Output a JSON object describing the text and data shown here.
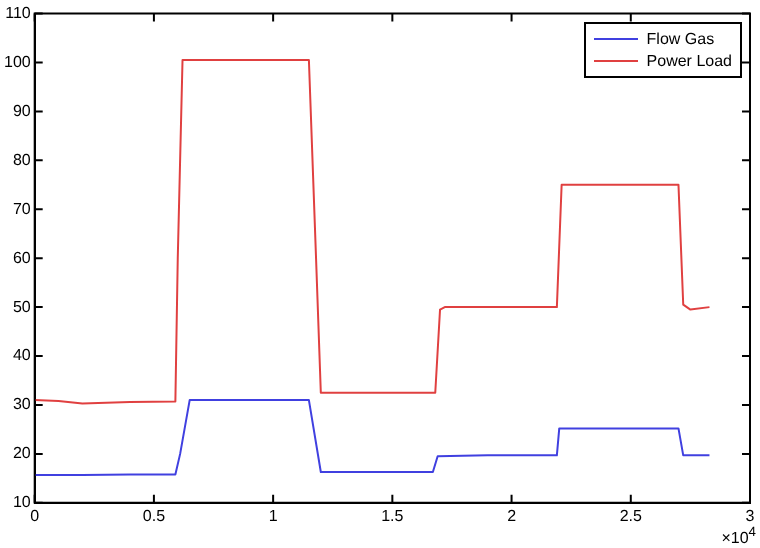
{
  "chart_data": {
    "type": "line",
    "xlim": [
      0,
      3
    ],
    "xticks": [
      0,
      0.5,
      1,
      1.5,
      2,
      2.5,
      3
    ],
    "ylim": [
      10,
      110
    ],
    "yticks": [
      10,
      20,
      30,
      40,
      50,
      60,
      70,
      80,
      90,
      100,
      110
    ],
    "grid": false,
    "legend": "top right",
    "marker": "none",
    "line_style": "solid",
    "annotations": [
      "×10$^{4}$"
    ],
    "series": [
      {
        "name": "Flow Gas",
        "color": "#4040e0",
        "x": [
          0,
          0.2,
          0.4,
          0.59,
          0.61,
          0.65,
          0.9,
          1.15,
          1.2,
          1.45,
          1.67,
          1.69,
          1.9,
          2.19,
          2.2,
          2.45,
          2.7,
          2.72,
          2.83
        ],
        "values": [
          15.7,
          15.7,
          15.8,
          15.8,
          20,
          31,
          31,
          31,
          16.3,
          16.3,
          16.3,
          19.5,
          19.7,
          19.7,
          25.2,
          25.2,
          25.2,
          19.7,
          19.7
        ]
      },
      {
        "name": "Power Load",
        "color": "#e04040",
        "x": [
          0,
          0.1,
          0.2,
          0.4,
          0.59,
          0.6,
          0.62,
          0.9,
          1.15,
          1.18,
          1.2,
          1.45,
          1.68,
          1.7,
          1.72,
          1.95,
          2.19,
          2.21,
          2.45,
          2.7,
          2.72,
          2.75,
          2.83
        ],
        "values": [
          31,
          30.8,
          30.3,
          30.6,
          30.7,
          60,
          100.5,
          100.5,
          100.5,
          60,
          32.5,
          32.5,
          32.5,
          49.5,
          50,
          50,
          50,
          75,
          75,
          75,
          50.5,
          49.5,
          50
        ]
      }
    ]
  }
}
